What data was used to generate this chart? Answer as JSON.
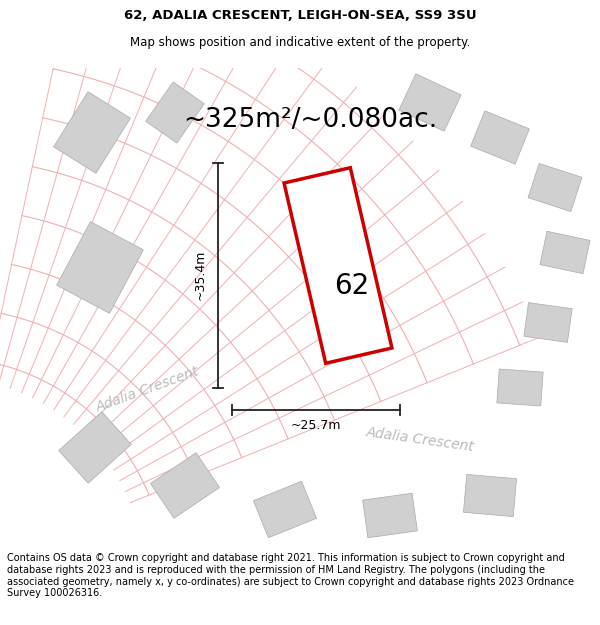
{
  "title_line1": "62, ADALIA CRESCENT, LEIGH-ON-SEA, SS9 3SU",
  "title_line2": "Map shows position and indicative extent of the property.",
  "area_text": "~325m²/~0.080ac.",
  "label_62": "62",
  "dim_width": "~25.7m",
  "dim_height": "~35.4m",
  "street_name1": "Adalia Crescent",
  "street_name2": "Adalia Crescent",
  "footer_text": "Contains OS data © Crown copyright and database right 2021. This information is subject to Crown copyright and database rights 2023 and is reproduced with the permission of HM Land Registry. The polygons (including the associated geometry, namely x, y co-ordinates) are subject to Crown copyright and database rights 2023 Ordnance Survey 100026316.",
  "bg_color": "#ffffff",
  "map_bg": "#fdf6f6",
  "road_color": "#f0b0b0",
  "building_color": "#d0d0d0",
  "plot_outline_color": "#cc0000",
  "plot_fill": "#ffffff",
  "dim_line_color": "#222222",
  "title_fontsize": 9.5,
  "subtitle_fontsize": 8.5,
  "area_fontsize": 19,
  "label_fontsize": 20,
  "dim_fontsize": 9,
  "street_fontsize": 10,
  "footer_fontsize": 7.0
}
